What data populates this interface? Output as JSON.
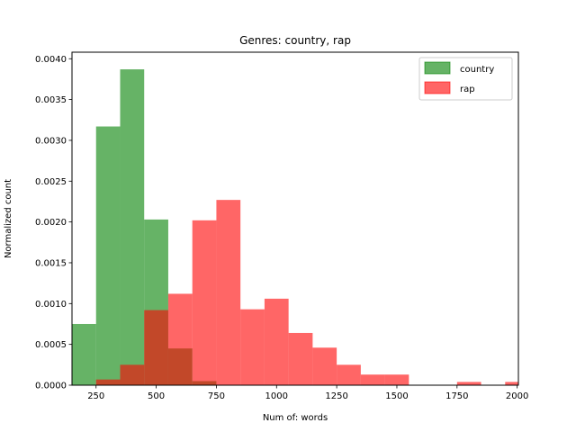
{
  "chart_data": {
    "type": "bar",
    "title": "Genres: country, rap",
    "xlabel": "Num of: words",
    "ylabel": "Normalized count",
    "xlim": [
      150,
      2005
    ],
    "ylim": [
      0,
      0.00408
    ],
    "xticks": [
      250,
      500,
      750,
      1000,
      1250,
      1500,
      1750,
      2000
    ],
    "yticks": [
      0.0,
      0.0005,
      0.001,
      0.0015,
      0.002,
      0.0025,
      0.003,
      0.0035,
      0.004
    ],
    "ytick_labels": [
      "0.0000",
      "0.0005",
      "0.0010",
      "0.0015",
      "0.0020",
      "0.0025",
      "0.0030",
      "0.0035",
      "0.0040"
    ],
    "grid": false,
    "legend_position": "top-right",
    "series": [
      {
        "name": "country",
        "color": "#008000",
        "alpha": 0.6,
        "bin_edges": [
          150,
          250,
          350,
          450,
          550,
          650,
          750
        ],
        "values": [
          0.00075,
          0.00317,
          0.00387,
          0.00203,
          0.00045,
          5e-05
        ]
      },
      {
        "name": "rap",
        "color": "#ff0000",
        "alpha": 0.6,
        "bin_edges": [
          250,
          350,
          450,
          550,
          650,
          750,
          850,
          950,
          1050,
          1150,
          1250,
          1350,
          1450,
          1550,
          1650,
          1750,
          1850,
          1950,
          2050
        ],
        "values": [
          7e-05,
          0.00025,
          0.00092,
          0.00112,
          0.00202,
          0.00227,
          0.00093,
          0.00106,
          0.00064,
          0.00046,
          0.00025,
          0.00013,
          0.00013,
          0.0,
          0.0,
          4e-05,
          0.0,
          4e-05
        ]
      }
    ]
  }
}
